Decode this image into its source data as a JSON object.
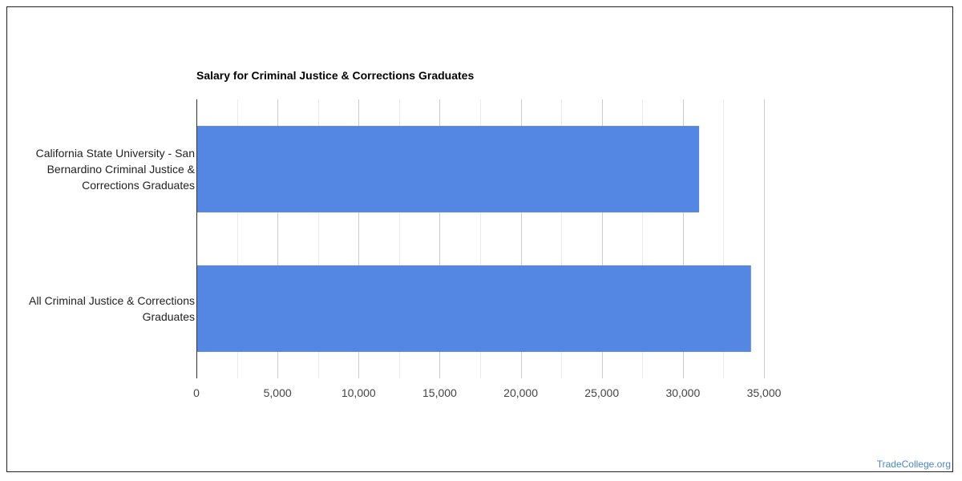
{
  "chart_data": {
    "type": "bar",
    "orientation": "horizontal",
    "title": "Salary for Criminal Justice & Corrections Graduates",
    "categories": [
      [
        "California State University - San",
        "Bernardino Criminal Justice &",
        "Corrections Graduates"
      ],
      [
        "All Criminal Justice & Corrections",
        "Graduates"
      ]
    ],
    "values": [
      31000,
      34200
    ],
    "xlim": [
      0,
      35000
    ],
    "xticks": [
      0,
      5000,
      10000,
      15000,
      20000,
      25000,
      30000,
      35000
    ],
    "tick_labels": [
      "0",
      "5,000",
      "10,000",
      "15,000",
      "20,000",
      "25,000",
      "30,000",
      "35,000"
    ],
    "minor_gridlines": true,
    "legend": "none",
    "bar_color": "#5387e3"
  },
  "watermark": "TradeCollege.org"
}
